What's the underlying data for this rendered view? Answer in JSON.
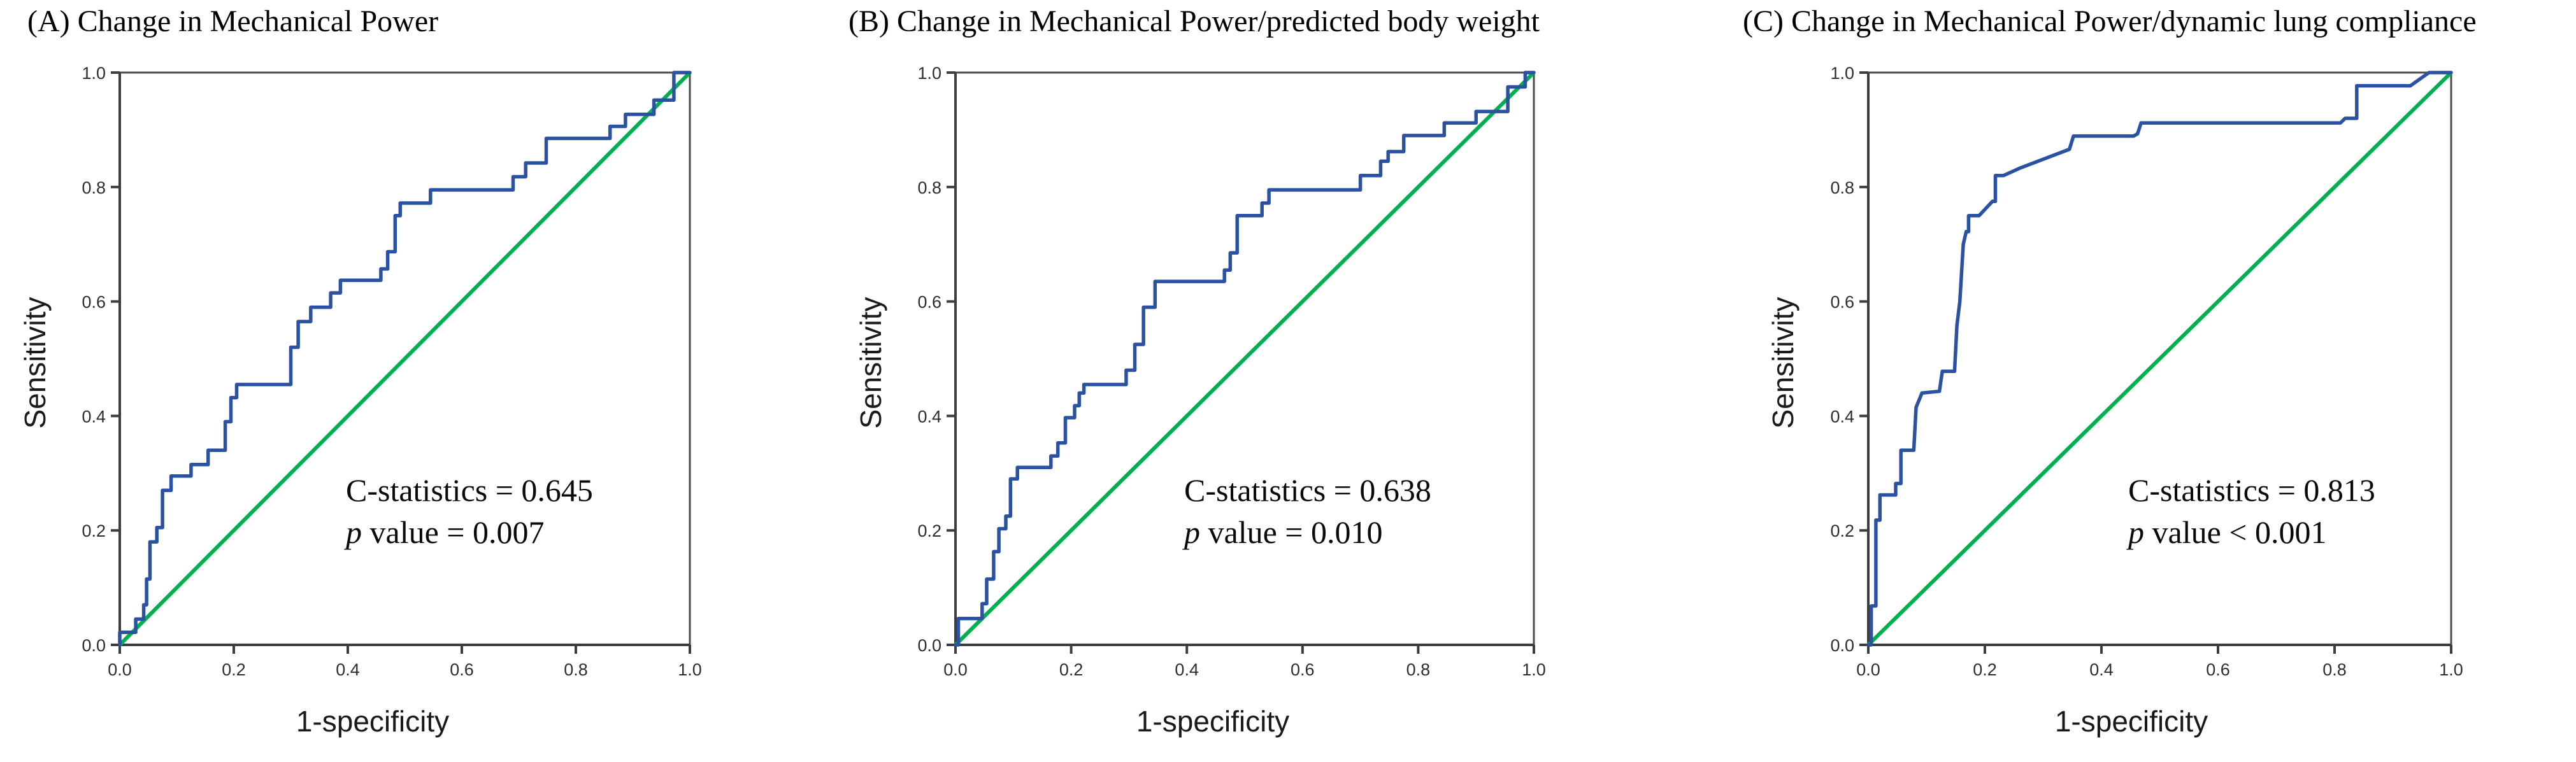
{
  "figure": {
    "panels": [
      {
        "id": "A",
        "title": "(A) Change in Mechanical Power",
        "xlabel": "1-specificity",
        "ylabel": "Sensitivity",
        "stats": {
          "c_line": "C-statistics = 0.645",
          "p_prefix": "p",
          "p_suffix": " value = 0.007"
        }
      },
      {
        "id": "B",
        "title": "(B) Change in Mechanical Power/predicted body weight",
        "xlabel": "1-specificity",
        "ylabel": "Sensitivity",
        "stats": {
          "c_line": "C-statistics = 0.638",
          "p_prefix": "p",
          "p_suffix": " value = 0.010"
        }
      },
      {
        "id": "C",
        "title": "(C) Change in Mechanical Power/dynamic lung compliance",
        "xlabel": "1-specificity",
        "ylabel": "Sensitivity",
        "stats": {
          "c_line": "C-statistics = 0.813",
          "p_prefix": "p",
          "p_suffix": " value < 0.001"
        }
      }
    ],
    "colors": {
      "roc_blue": "#2b51a3",
      "reference_green": "#00b04e",
      "axis_gray": "#3d3d3d",
      "border_gray": "#4d4d4d",
      "tick_text": "#2e2e2e"
    }
  },
  "chart_data": [
    {
      "type": "line",
      "title": "(A) Change in Mechanical Power",
      "xlabel": "1-specificity",
      "ylabel": "Sensitivity",
      "xlim": [
        0,
        1
      ],
      "ylim": [
        0,
        1
      ],
      "x_ticks": [
        "0.0",
        "0.2",
        "0.4",
        "0.6",
        "0.8",
        "1.0"
      ],
      "y_ticks": [
        "0.0",
        "0.2",
        "0.4",
        "0.6",
        "0.8",
        "1.0"
      ],
      "grid": false,
      "legend": "none",
      "annotations": [
        "C-statistics = 0.645",
        "p value = 0.007"
      ],
      "series": [
        {
          "name": "ROC curve",
          "color": "#2b51a3",
          "points": [
            [
              0,
              0
            ],
            [
              0,
              0.022
            ],
            [
              0.028,
              0.022
            ],
            [
              0.028,
              0.045
            ],
            [
              0.042,
              0.045
            ],
            [
              0.042,
              0.07
            ],
            [
              0.047,
              0.07
            ],
            [
              0.047,
              0.115
            ],
            [
              0.053,
              0.115
            ],
            [
              0.053,
              0.18
            ],
            [
              0.065,
              0.18
            ],
            [
              0.065,
              0.205
            ],
            [
              0.075,
              0.205
            ],
            [
              0.075,
              0.27
            ],
            [
              0.09,
              0.27
            ],
            [
              0.09,
              0.295
            ],
            [
              0.125,
              0.295
            ],
            [
              0.125,
              0.315
            ],
            [
              0.155,
              0.315
            ],
            [
              0.155,
              0.34
            ],
            [
              0.185,
              0.34
            ],
            [
              0.185,
              0.39
            ],
            [
              0.195,
              0.39
            ],
            [
              0.195,
              0.432
            ],
            [
              0.205,
              0.432
            ],
            [
              0.205,
              0.455
            ],
            [
              0.3,
              0.455
            ],
            [
              0.3,
              0.52
            ],
            [
              0.313,
              0.52
            ],
            [
              0.313,
              0.565
            ],
            [
              0.335,
              0.565
            ],
            [
              0.335,
              0.59
            ],
            [
              0.37,
              0.59
            ],
            [
              0.37,
              0.615
            ],
            [
              0.387,
              0.615
            ],
            [
              0.387,
              0.637
            ],
            [
              0.458,
              0.637
            ],
            [
              0.458,
              0.657
            ],
            [
              0.47,
              0.657
            ],
            [
              0.47,
              0.687
            ],
            [
              0.483,
              0.687
            ],
            [
              0.483,
              0.75
            ],
            [
              0.492,
              0.75
            ],
            [
              0.492,
              0.772
            ],
            [
              0.545,
              0.772
            ],
            [
              0.545,
              0.795
            ],
            [
              0.557,
              0.795
            ],
            [
              0.69,
              0.795
            ],
            [
              0.69,
              0.818
            ],
            [
              0.712,
              0.818
            ],
            [
              0.712,
              0.842
            ],
            [
              0.748,
              0.842
            ],
            [
              0.748,
              0.885
            ],
            [
              0.86,
              0.885
            ],
            [
              0.86,
              0.906
            ],
            [
              0.887,
              0.906
            ],
            [
              0.887,
              0.927
            ],
            [
              0.937,
              0.927
            ],
            [
              0.937,
              0.952
            ],
            [
              0.972,
              0.952
            ],
            [
              0.972,
              1.0
            ],
            [
              1,
              1
            ]
          ]
        },
        {
          "name": "Reference line",
          "color": "#00b04e",
          "points": [
            [
              0,
              0
            ],
            [
              1,
              1
            ]
          ]
        }
      ]
    },
    {
      "type": "line",
      "title": "(B) Change in Mechanical Power/predicted body weight",
      "xlabel": "1-specificity",
      "ylabel": "Sensitivity",
      "xlim": [
        0,
        1
      ],
      "ylim": [
        0,
        1
      ],
      "x_ticks": [
        "0.0",
        "0.2",
        "0.4",
        "0.6",
        "0.8",
        "1.0"
      ],
      "y_ticks": [
        "0.0",
        "0.2",
        "0.4",
        "0.6",
        "0.8",
        "1.0"
      ],
      "grid": false,
      "legend": "none",
      "annotations": [
        "C-statistics = 0.638",
        "p value = 0.010"
      ],
      "series": [
        {
          "name": "ROC curve",
          "color": "#2b51a3",
          "points": [
            [
              0,
              0
            ],
            [
              0.005,
              0
            ],
            [
              0.005,
              0.046
            ],
            [
              0.046,
              0.046
            ],
            [
              0.046,
              0.072
            ],
            [
              0.054,
              0.072
            ],
            [
              0.054,
              0.115
            ],
            [
              0.066,
              0.115
            ],
            [
              0.066,
              0.163
            ],
            [
              0.075,
              0.163
            ],
            [
              0.075,
              0.203
            ],
            [
              0.087,
              0.203
            ],
            [
              0.087,
              0.225
            ],
            [
              0.095,
              0.225
            ],
            [
              0.095,
              0.29
            ],
            [
              0.107,
              0.29
            ],
            [
              0.107,
              0.31
            ],
            [
              0.165,
              0.31
            ],
            [
              0.165,
              0.33
            ],
            [
              0.177,
              0.33
            ],
            [
              0.177,
              0.353
            ],
            [
              0.19,
              0.353
            ],
            [
              0.19,
              0.397
            ],
            [
              0.206,
              0.397
            ],
            [
              0.206,
              0.418
            ],
            [
              0.214,
              0.418
            ],
            [
              0.214,
              0.44
            ],
            [
              0.222,
              0.44
            ],
            [
              0.222,
              0.455
            ],
            [
              0.295,
              0.455
            ],
            [
              0.295,
              0.48
            ],
            [
              0.31,
              0.48
            ],
            [
              0.31,
              0.525
            ],
            [
              0.325,
              0.525
            ],
            [
              0.325,
              0.59
            ],
            [
              0.345,
              0.59
            ],
            [
              0.345,
              0.635
            ],
            [
              0.465,
              0.635
            ],
            [
              0.465,
              0.655
            ],
            [
              0.475,
              0.655
            ],
            [
              0.475,
              0.685
            ],
            [
              0.487,
              0.685
            ],
            [
              0.487,
              0.75
            ],
            [
              0.53,
              0.75
            ],
            [
              0.53,
              0.772
            ],
            [
              0.542,
              0.772
            ],
            [
              0.542,
              0.795
            ],
            [
              0.557,
              0.795
            ],
            [
              0.7,
              0.795
            ],
            [
              0.7,
              0.82
            ],
            [
              0.735,
              0.82
            ],
            [
              0.735,
              0.845
            ],
            [
              0.748,
              0.845
            ],
            [
              0.748,
              0.862
            ],
            [
              0.775,
              0.862
            ],
            [
              0.775,
              0.89
            ],
            [
              0.845,
              0.89
            ],
            [
              0.845,
              0.912
            ],
            [
              0.9,
              0.912
            ],
            [
              0.9,
              0.932
            ],
            [
              0.955,
              0.932
            ],
            [
              0.955,
              0.975
            ],
            [
              0.985,
              0.975
            ],
            [
              0.985,
              1.0
            ],
            [
              1,
              1
            ]
          ]
        },
        {
          "name": "Reference line",
          "color": "#00b04e",
          "points": [
            [
              0,
              0
            ],
            [
              1,
              1
            ]
          ]
        }
      ]
    },
    {
      "type": "line",
      "title": "(C) Change in Mechanical Power/dynamic lung compliance",
      "xlabel": "1-specificity",
      "ylabel": "Sensitivity",
      "xlim": [
        0,
        1
      ],
      "ylim": [
        0,
        1
      ],
      "x_ticks": [
        "0.0",
        "0.2",
        "0.4",
        "0.6",
        "0.8",
        "1.0"
      ],
      "y_ticks": [
        "0.0",
        "0.2",
        "0.4",
        "0.6",
        "0.8",
        "1.0"
      ],
      "grid": false,
      "legend": "none",
      "annotations": [
        "C-statistics = 0.813",
        "p value < 0.001"
      ],
      "series": [
        {
          "name": "ROC curve",
          "color": "#2b51a3",
          "points": [
            [
              0,
              0
            ],
            [
              0.005,
              0
            ],
            [
              0.005,
              0.068
            ],
            [
              0.013,
              0.068
            ],
            [
              0.013,
              0.218
            ],
            [
              0.02,
              0.218
            ],
            [
              0.02,
              0.262
            ],
            [
              0.047,
              0.262
            ],
            [
              0.047,
              0.282
            ],
            [
              0.056,
              0.282
            ],
            [
              0.056,
              0.34
            ],
            [
              0.078,
              0.34
            ],
            [
              0.082,
              0.415
            ],
            [
              0.092,
              0.44
            ],
            [
              0.122,
              0.443
            ],
            [
              0.127,
              0.478
            ],
            [
              0.148,
              0.478
            ],
            [
              0.152,
              0.558
            ],
            [
              0.157,
              0.6
            ],
            [
              0.163,
              0.7
            ],
            [
              0.168,
              0.722
            ],
            [
              0.172,
              0.722
            ],
            [
              0.172,
              0.75
            ],
            [
              0.19,
              0.75
            ],
            [
              0.213,
              0.775
            ],
            [
              0.218,
              0.775
            ],
            [
              0.218,
              0.82
            ],
            [
              0.232,
              0.82
            ],
            [
              0.26,
              0.833
            ],
            [
              0.345,
              0.866
            ],
            [
              0.352,
              0.889
            ],
            [
              0.455,
              0.889
            ],
            [
              0.462,
              0.893
            ],
            [
              0.468,
              0.912
            ],
            [
              0.81,
              0.912
            ],
            [
              0.818,
              0.92
            ],
            [
              0.838,
              0.92
            ],
            [
              0.838,
              0.977
            ],
            [
              0.93,
              0.977
            ],
            [
              0.962,
              1.0
            ],
            [
              1,
              1
            ]
          ]
        },
        {
          "name": "Reference line",
          "color": "#00b04e",
          "points": [
            [
              0,
              0
            ],
            [
              1,
              1
            ]
          ]
        }
      ]
    }
  ]
}
